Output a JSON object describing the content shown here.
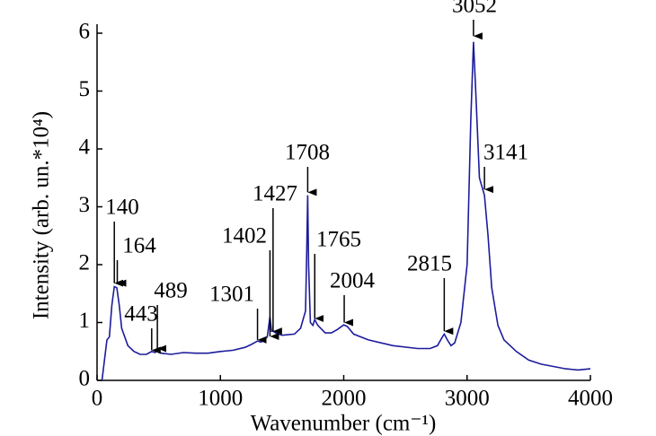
{
  "chart_data": {
    "type": "line",
    "xlabel": "Wavenumber (cm⁻¹)",
    "ylabel": "Intensity (arb. un.*10⁴)",
    "x": [
      40,
      80,
      100,
      120,
      140,
      160,
      180,
      200,
      250,
      300,
      350,
      400,
      443,
      470,
      489,
      520,
      600,
      700,
      800,
      900,
      1000,
      1100,
      1200,
      1250,
      1301,
      1330,
      1380,
      1402,
      1415,
      1427,
      1450,
      1500,
      1600,
      1650,
      1690,
      1700,
      1708,
      1715,
      1730,
      1750,
      1765,
      1790,
      1850,
      1900,
      1950,
      2000,
      2030,
      2080,
      2200,
      2400,
      2600,
      2700,
      2760,
      2800,
      2815,
      2840,
      2870,
      2900,
      2950,
      3000,
      3030,
      3052,
      3070,
      3100,
      3141,
      3170,
      3200,
      3250,
      3300,
      3400,
      3500,
      3600,
      3700,
      3800,
      3900,
      4000
    ],
    "series": [
      {
        "color": "#1c1c9c",
        "values": [
          0.0,
          0.7,
          0.75,
          1.3,
          1.62,
          1.6,
          1.3,
          0.9,
          0.6,
          0.5,
          0.45,
          0.45,
          0.5,
          0.48,
          0.52,
          0.47,
          0.45,
          0.48,
          0.47,
          0.47,
          0.5,
          0.52,
          0.57,
          0.62,
          0.68,
          0.66,
          0.75,
          1.1,
          0.85,
          0.85,
          0.82,
          0.78,
          0.8,
          0.9,
          1.2,
          2.2,
          3.2,
          2.0,
          1.0,
          0.95,
          1.05,
          0.95,
          0.82,
          0.82,
          0.88,
          0.96,
          0.93,
          0.8,
          0.7,
          0.6,
          0.55,
          0.55,
          0.6,
          0.75,
          0.8,
          0.7,
          0.6,
          0.65,
          1.0,
          2.0,
          4.5,
          5.85,
          5.0,
          3.5,
          3.2,
          2.5,
          1.6,
          0.95,
          0.7,
          0.5,
          0.35,
          0.28,
          0.24,
          0.2,
          0.18,
          0.2
        ]
      }
    ],
    "xlim": [
      0,
      4000
    ],
    "xticks": [
      0,
      1000,
      2000,
      3000,
      4000
    ],
    "ylim": [
      0,
      6
    ],
    "yticks": [
      0,
      1,
      2,
      3,
      4,
      5,
      6
    ],
    "annotations": [
      {
        "x": 140,
        "y": 1.68,
        "text": "140"
      },
      {
        "x": 164,
        "y": 1.68,
        "text": "164"
      },
      {
        "x": 443,
        "y": 0.52,
        "text": "443"
      },
      {
        "x": 489,
        "y": 0.55,
        "text": "489"
      },
      {
        "x": 1301,
        "y": 0.7,
        "text": "1301"
      },
      {
        "x": 1402,
        "y": 0.76,
        "text": "1402"
      },
      {
        "x": 1427,
        "y": 0.85,
        "text": "1427"
      },
      {
        "x": 1708,
        "y": 3.25,
        "text": "1708"
      },
      {
        "x": 1765,
        "y": 1.07,
        "text": "1765"
      },
      {
        "x": 2004,
        "y": 1.0,
        "text": "2004"
      },
      {
        "x": 2815,
        "y": 0.85,
        "text": "2815"
      },
      {
        "x": 3052,
        "y": 5.95,
        "text": "3052"
      },
      {
        "x": 3141,
        "y": 3.3,
        "text": "3141"
      }
    ]
  }
}
